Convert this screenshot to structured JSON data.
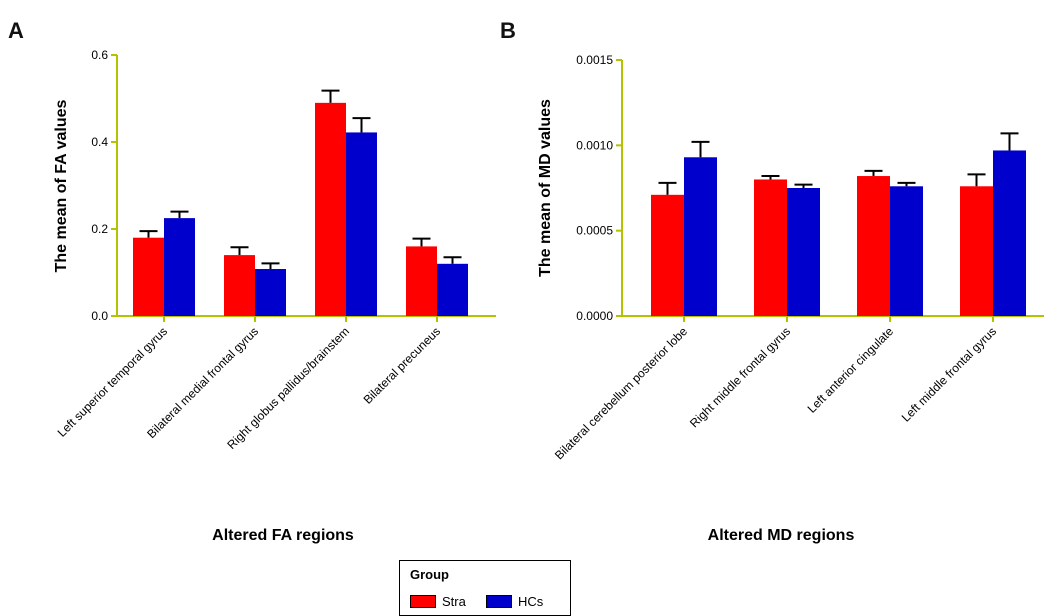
{
  "legend": {
    "title": "Group",
    "entries": [
      {
        "name": "Stra",
        "color": "#ff0000"
      },
      {
        "name": "HCs",
        "color": "#0000cc"
      }
    ]
  },
  "axis_color": "#b5c200",
  "chart_data": [
    {
      "panel": "A",
      "type": "bar",
      "xlabel": "Altered FA regions",
      "ylabel": "The mean of FA values",
      "ylim": [
        0,
        0.6
      ],
      "yticks": [
        "0.0",
        "0.2",
        "0.4",
        "0.6"
      ],
      "categories": [
        "Left superior temporal gyrus",
        "Bilateral medial frontal gyrus",
        "Right globus pallidus/brainstem",
        "Bilateral precuneus"
      ],
      "series": [
        {
          "name": "Stra",
          "values": [
            0.18,
            0.14,
            0.49,
            0.16
          ],
          "errors": [
            0.015,
            0.018,
            0.028,
            0.018
          ]
        },
        {
          "name": "HCs",
          "values": [
            0.225,
            0.108,
            0.422,
            0.12
          ],
          "errors": [
            0.015,
            0.013,
            0.033,
            0.015
          ]
        }
      ]
    },
    {
      "panel": "B",
      "type": "bar",
      "xlabel": "Altered MD regions",
      "ylabel": "The mean of MD values",
      "ylim": [
        0,
        0.0015
      ],
      "yticks": [
        "0.0000",
        "0.0005",
        "0.0010",
        "0.0015"
      ],
      "categories": [
        "Bilateral cerebellum posterior lobe",
        "Right middle frontal gyrus",
        "Left anterior cingulate",
        "Left middle frontal gyrus"
      ],
      "series": [
        {
          "name": "Stra",
          "values": [
            0.00071,
            0.0008,
            0.00082,
            0.00076
          ],
          "errors": [
            7e-05,
            2e-05,
            3e-05,
            7e-05
          ]
        },
        {
          "name": "HCs",
          "values": [
            0.00093,
            0.00075,
            0.00076,
            0.00097
          ],
          "errors": [
            9e-05,
            2e-05,
            2e-05,
            0.0001
          ]
        }
      ]
    }
  ]
}
